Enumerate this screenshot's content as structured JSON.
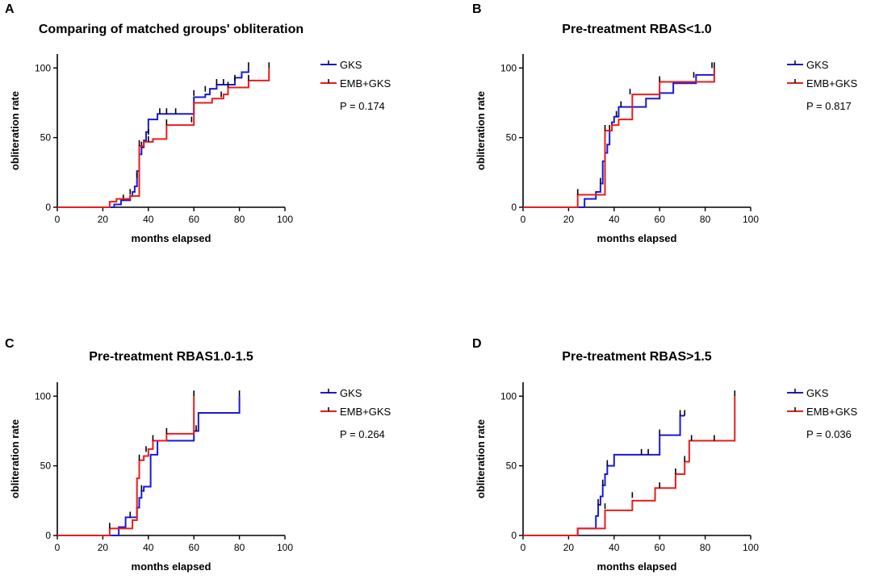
{
  "chart_data": [
    {
      "panel": "A",
      "type": "line",
      "title": "Comparing of matched groups' obliteration",
      "xlabel": "months elapsed",
      "ylabel": "obliteration rate",
      "xlim": [
        0,
        100
      ],
      "ylim": [
        0,
        110
      ],
      "xticks": [
        "0",
        "20",
        "40",
        "60",
        "80",
        "100"
      ],
      "yticks": [
        "0",
        "50",
        "100"
      ],
      "legend": [
        "GKS",
        "EMB+GKS"
      ],
      "p_value": "P = 0.174",
      "series": [
        {
          "name": "GKS",
          "color": "#1a1ad4",
          "x": [
            0,
            25,
            28,
            32,
            33,
            34,
            35,
            36,
            37,
            38,
            39,
            40,
            42,
            44,
            46,
            60,
            65,
            67,
            70,
            73,
            78,
            81,
            84
          ],
          "y": [
            0,
            2,
            5,
            8,
            11,
            15,
            26,
            38,
            43,
            48,
            54,
            63,
            63,
            67,
            67,
            79,
            81,
            85,
            88,
            88,
            93,
            97,
            100
          ],
          "censored": [
            [
              29,
              5
            ],
            [
              32,
              9
            ],
            [
              35,
              21
            ],
            [
              37,
              43
            ],
            [
              40,
              52
            ],
            [
              45,
              67
            ],
            [
              48,
              67
            ],
            [
              52,
              67
            ],
            [
              60,
              80
            ],
            [
              65,
              83
            ],
            [
              70,
              88
            ],
            [
              73,
              88
            ],
            [
              78,
              91
            ],
            [
              84,
              100
            ]
          ]
        },
        {
          "name": "EMB+GKS",
          "color": "#e61e1e",
          "x": [
            0,
            23,
            26,
            29,
            32,
            35,
            36,
            38,
            42,
            48,
            60,
            68,
            73,
            75,
            84,
            93
          ],
          "y": [
            0,
            4,
            6,
            6,
            8,
            8,
            44,
            47,
            49,
            59,
            75,
            78,
            81,
            86,
            91,
            100
          ],
          "censored": [
            [
              36,
              44
            ],
            [
              40,
              47
            ],
            [
              48,
              59
            ],
            [
              59,
              61
            ],
            [
              72,
              79
            ],
            [
              75,
              86
            ],
            [
              84,
              91
            ],
            [
              93,
              100
            ]
          ]
        }
      ]
    },
    {
      "panel": "B",
      "type": "line",
      "title": "Pre-treatment RBAS<1.0",
      "xlabel": "months elapsed",
      "ylabel": "obliteration rate",
      "xlim": [
        0,
        100
      ],
      "ylim": [
        0,
        110
      ],
      "xticks": [
        "0",
        "20",
        "40",
        "60",
        "80",
        "100"
      ],
      "yticks": [
        "0",
        "50",
        "100"
      ],
      "legend": [
        "GKS",
        "EMB+GKS"
      ],
      "p_value": "P = 0.817",
      "series": [
        {
          "name": "GKS",
          "color": "#1a1ad4",
          "x": [
            0,
            27,
            32,
            34,
            35,
            36,
            37,
            38,
            39,
            40,
            42,
            48,
            54,
            60,
            66,
            76,
            84
          ],
          "y": [
            0,
            6,
            11,
            17,
            33,
            39,
            45,
            55,
            61,
            65,
            72,
            72,
            78,
            82,
            89,
            95,
            100
          ],
          "censored": [
            [
              34,
              17
            ],
            [
              38,
              55
            ],
            [
              41,
              65
            ],
            [
              43,
              72
            ],
            [
              60,
              82
            ],
            [
              75,
              93
            ],
            [
              83,
              100
            ]
          ]
        },
        {
          "name": "EMB+GKS",
          "color": "#e61e1e",
          "x": [
            0,
            24,
            30,
            36,
            39,
            42,
            48,
            60,
            84
          ],
          "y": [
            0,
            9,
            9,
            55,
            59,
            63,
            81,
            90,
            100
          ],
          "censored": [
            [
              24,
              9
            ],
            [
              36,
              55
            ],
            [
              47,
              81
            ],
            [
              60,
              90
            ],
            [
              84,
              100
            ]
          ]
        }
      ]
    },
    {
      "panel": "C",
      "type": "line",
      "title": "Pre-treatment RBAS1.0-1.5",
      "xlabel": "months elapsed",
      "ylabel": "obliteration rate",
      "xlim": [
        0,
        100
      ],
      "ylim": [
        0,
        110
      ],
      "xticks": [
        "0",
        "20",
        "40",
        "60",
        "80",
        "100"
      ],
      "yticks": [
        "0",
        "50",
        "100"
      ],
      "legend": [
        "GKS",
        "EMB+GKS"
      ],
      "p_value": "P = 0.264",
      "series": [
        {
          "name": "GKS",
          "color": "#1a1ad4",
          "x": [
            0,
            27,
            30,
            35,
            36,
            37,
            38,
            41,
            44,
            60,
            62,
            80
          ],
          "y": [
            0,
            6,
            13,
            20,
            27,
            32,
            35,
            58,
            68,
            75,
            88,
            100
          ],
          "censored": [
            [
              32,
              13
            ],
            [
              37,
              32
            ],
            [
              61,
              75
            ],
            [
              80,
              100
            ]
          ]
        },
        {
          "name": "EMB+GKS",
          "color": "#e61e1e",
          "x": [
            0,
            23,
            33,
            35,
            36,
            38,
            40,
            42,
            48,
            60
          ],
          "y": [
            0,
            5,
            11,
            41,
            54,
            57,
            62,
            68,
            73,
            100
          ],
          "censored": [
            [
              23,
              5
            ],
            [
              36,
              54
            ],
            [
              39,
              60
            ],
            [
              42,
              68
            ],
            [
              48,
              73
            ],
            [
              60,
              100
            ]
          ]
        }
      ]
    },
    {
      "panel": "D",
      "type": "line",
      "title": "Pre-treatment RBAS>1.5",
      "xlabel": "months elapsed",
      "ylabel": "obliteration rate",
      "xlim": [
        0,
        100
      ],
      "ylim": [
        0,
        110
      ],
      "xticks": [
        "0",
        "20",
        "40",
        "60",
        "80",
        "100"
      ],
      "yticks": [
        "0",
        "50",
        "100"
      ],
      "legend": [
        "GKS",
        "EMB+GKS"
      ],
      "p_value": "P = 0.036",
      "series": [
        {
          "name": "GKS",
          "color": "#1a1ad4",
          "x": [
            0,
            24,
            32,
            33,
            34,
            35,
            36,
            37,
            40,
            60,
            69,
            71
          ],
          "y": [
            0,
            5,
            14,
            22,
            28,
            36,
            44,
            50,
            58,
            72,
            86,
            86
          ],
          "censored": [
            [
              33,
              22
            ],
            [
              35,
              36
            ],
            [
              37,
              50
            ],
            [
              52,
              58
            ],
            [
              55,
              58
            ],
            [
              60,
              72
            ],
            [
              69,
              86
            ],
            [
              71,
              86
            ]
          ]
        },
        {
          "name": "EMB+GKS",
          "color": "#e61e1e",
          "x": [
            0,
            24,
            36,
            48,
            58,
            67,
            71,
            73,
            93
          ],
          "y": [
            0,
            5,
            18,
            25,
            34,
            44,
            53,
            68,
            100
          ],
          "censored": [
            [
              36,
              19
            ],
            [
              48,
              27
            ],
            [
              60,
              34
            ],
            [
              67,
              44
            ],
            [
              71,
              53
            ],
            [
              74,
              68
            ],
            [
              84,
              68
            ],
            [
              93,
              100
            ]
          ]
        }
      ]
    }
  ]
}
